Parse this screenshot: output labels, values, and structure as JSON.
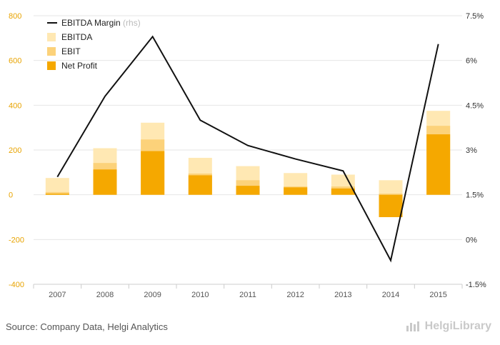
{
  "chart_data": {
    "type": "bar",
    "categories": [
      "2007",
      "2008",
      "2009",
      "2010",
      "2011",
      "2012",
      "2013",
      "2014",
      "2015"
    ],
    "series": [
      {
        "name": "EBITDA",
        "values": [
          75,
          208,
          322,
          165,
          128,
          97,
          90,
          65,
          375
        ]
      },
      {
        "name": "EBIT",
        "values": [
          12,
          142,
          247,
          95,
          65,
          37,
          37,
          5,
          308
        ]
      },
      {
        "name": "Net Profit",
        "values": [
          5,
          113,
          195,
          87,
          40,
          33,
          28,
          -100,
          270
        ]
      }
    ],
    "line_series": {
      "name": "EBITDA Margin",
      "name_suffix": "(rhs)",
      "axis": "right",
      "values": [
        2.1,
        4.8,
        6.8,
        4.0,
        3.15,
        2.7,
        2.3,
        -0.7,
        6.55
      ]
    },
    "y_left": {
      "range": [
        -400,
        800
      ],
      "ticks": [
        "800",
        "600",
        "400",
        "200",
        "0",
        "-200",
        "-400"
      ]
    },
    "y_right": {
      "range": [
        -1.5,
        7.5
      ],
      "ticks": [
        "7.5%",
        "6%",
        "4.5%",
        "3%",
        "1.5%",
        "0%",
        "-1.5%"
      ]
    },
    "legend": [
      "EBITDA Margin",
      "EBITDA",
      "EBIT",
      "Net Profit"
    ],
    "legend_position": "top-left",
    "grid": true,
    "colors": {
      "EBITDA": "#ffe8b3",
      "EBIT": "#fcd27a",
      "Net Profit": "#f5a800",
      "EBITDA Margin": "#111111",
      "left_axis_text": "#e8a300"
    }
  },
  "footer": {
    "source": "Source: Company Data, Helgi Analytics",
    "brand": "HelgiLibrary"
  }
}
